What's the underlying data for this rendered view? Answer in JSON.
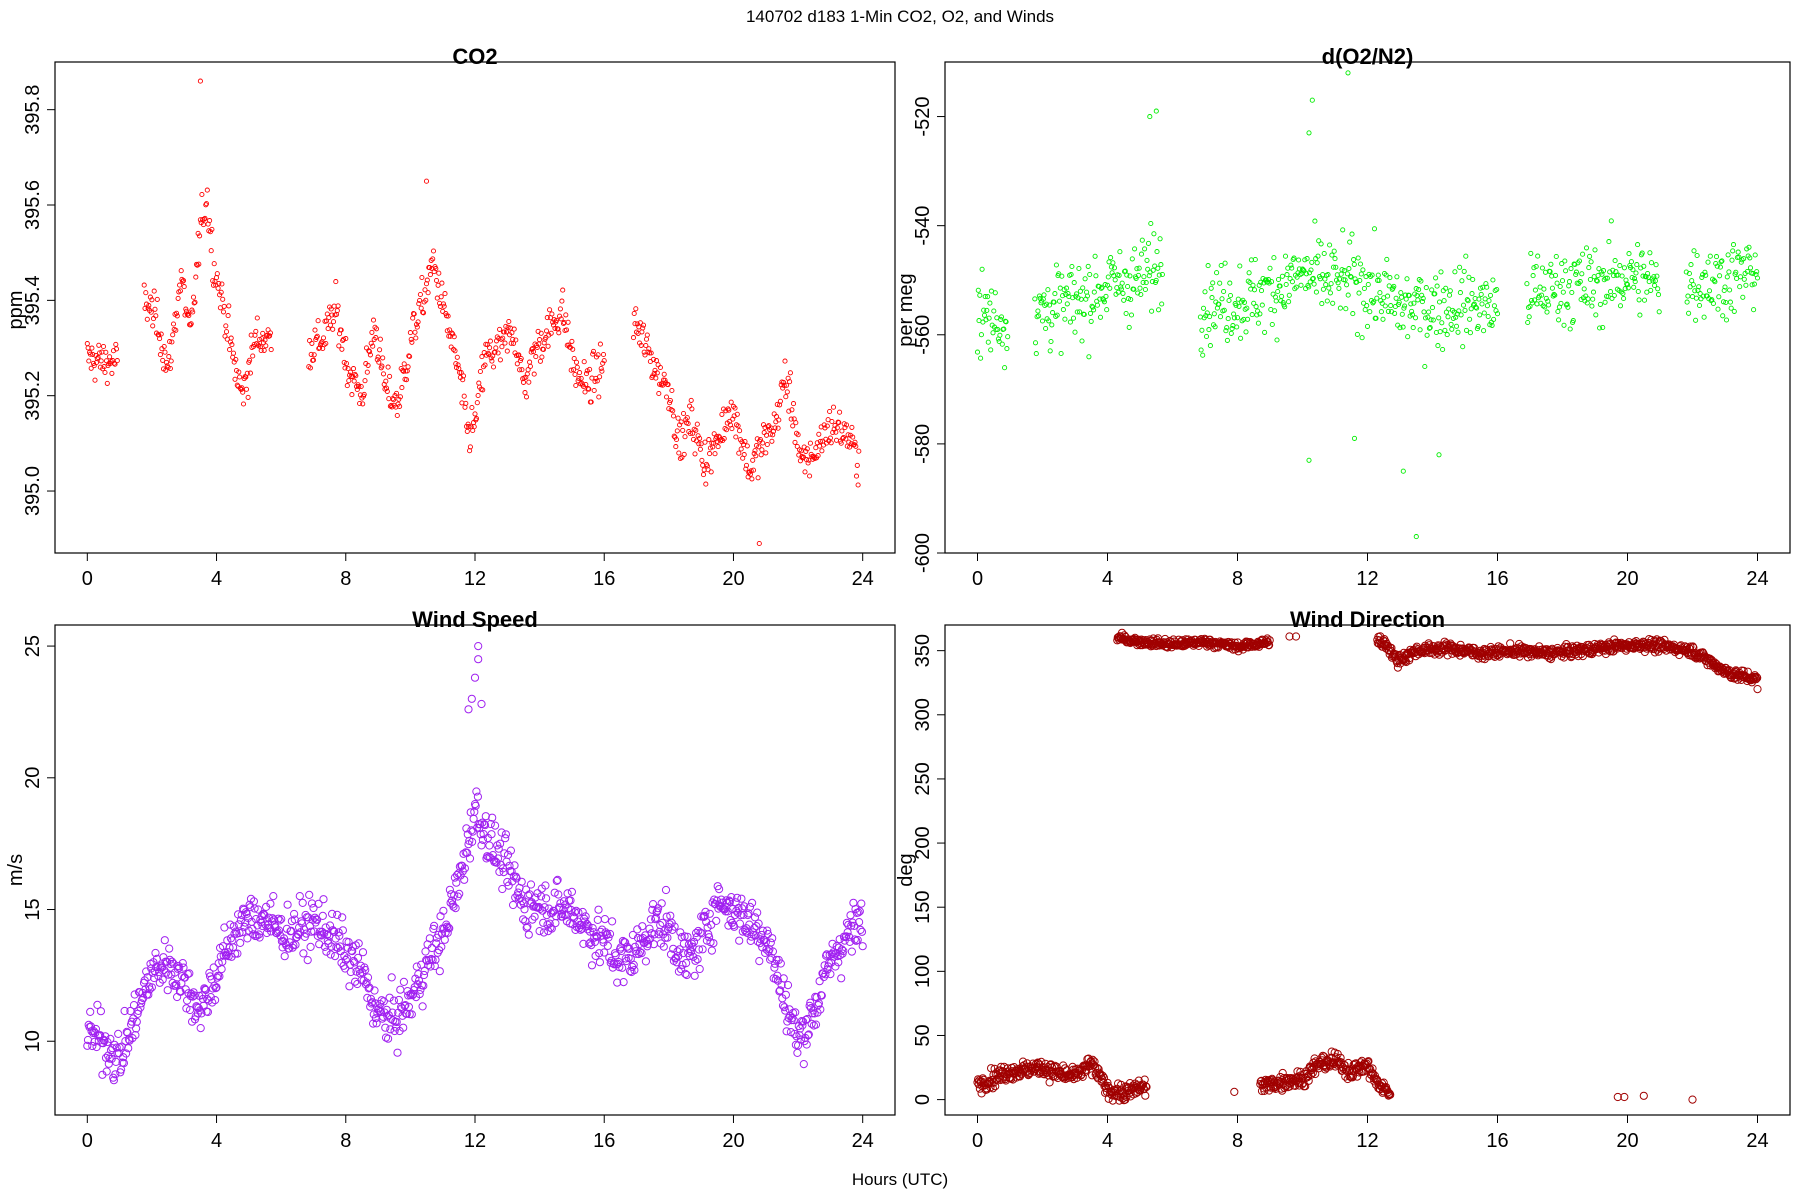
{
  "figure": {
    "suptitle": "140702   d183   1-Min CO2, O2, and Winds",
    "shared_xlabel": "Hours (UTC)"
  },
  "chart_data": [
    {
      "type": "scatter",
      "title": "CO2",
      "xlabel": "",
      "ylabel": "ppm",
      "xlim": [
        -1,
        25
      ],
      "ylim": [
        394.87,
        395.9
      ],
      "xticks": [
        0,
        4,
        8,
        12,
        16,
        20,
        24
      ],
      "yticks": [
        395.0,
        395.2,
        395.4,
        395.6,
        395.8
      ],
      "ytick_labels": [
        "395.0",
        "395.2",
        "395.4",
        "395.6",
        "395.8"
      ],
      "grid": false,
      "series": [
        {
          "color": "#ff0000",
          "trend": [
            [
              0.0,
              395.28
            ],
            [
              0.5,
              395.27
            ],
            [
              0.9,
              395.27
            ],
            [
              1.8,
              395.4
            ],
            [
              2.2,
              395.35
            ],
            [
              2.5,
              395.25
            ],
            [
              2.9,
              395.45
            ],
            [
              3.2,
              395.32
            ],
            [
              3.5,
              395.55
            ],
            [
              3.7,
              395.62
            ],
            [
              3.9,
              395.48
            ],
            [
              4.3,
              395.36
            ],
            [
              4.5,
              395.28
            ],
            [
              4.8,
              395.2
            ],
            [
              5.2,
              395.32
            ],
            [
              5.6,
              395.32
            ],
            [
              6.9,
              395.3
            ],
            [
              7.3,
              395.32
            ],
            [
              7.7,
              395.38
            ],
            [
              8.1,
              395.25
            ],
            [
              8.5,
              395.2
            ],
            [
              8.9,
              395.35
            ],
            [
              9.2,
              395.22
            ],
            [
              9.6,
              395.18
            ],
            [
              10.1,
              395.34
            ],
            [
              10.4,
              395.4
            ],
            [
              10.7,
              395.48
            ],
            [
              11.5,
              395.25
            ],
            [
              11.8,
              395.12
            ],
            [
              12.0,
              395.14
            ],
            [
              12.3,
              395.28
            ],
            [
              12.8,
              395.3
            ],
            [
              13.2,
              395.34
            ],
            [
              13.5,
              395.22
            ],
            [
              13.9,
              395.3
            ],
            [
              14.3,
              395.34
            ],
            [
              14.7,
              395.38
            ],
            [
              15.1,
              395.25
            ],
            [
              15.5,
              395.22
            ],
            [
              15.8,
              395.25
            ],
            [
              16.9,
              395.36
            ],
            [
              17.3,
              395.3
            ],
            [
              17.7,
              395.24
            ],
            [
              18.0,
              395.22
            ],
            [
              18.3,
              395.1
            ],
            [
              18.7,
              395.15
            ],
            [
              19.1,
              395.06
            ],
            [
              19.5,
              395.1
            ],
            [
              19.9,
              395.18
            ],
            [
              20.2,
              395.12
            ],
            [
              20.5,
              395.04
            ],
            [
              20.9,
              395.1
            ],
            [
              21.3,
              395.14
            ],
            [
              21.6,
              395.24
            ],
            [
              21.9,
              395.15
            ],
            [
              22.1,
              395.05
            ],
            [
              22.5,
              395.08
            ],
            [
              23.0,
              395.14
            ],
            [
              23.5,
              395.12
            ],
            [
              23.9,
              395.06
            ]
          ],
          "spread": 0.04,
          "gaps": [
            [
              0.95,
              1.75
            ],
            [
              5.7,
              6.85
            ],
            [
              16.0,
              16.9
            ]
          ],
          "outliers": [
            [
              3.5,
              395.86
            ],
            [
              10.5,
              395.65
            ],
            [
              20.8,
              394.89
            ]
          ]
        }
      ]
    },
    {
      "type": "scatter",
      "title": "d(O2/N2)",
      "xlabel": "",
      "ylabel": "per meg",
      "xlim": [
        -1,
        25
      ],
      "ylim": [
        -600,
        -510
      ],
      "xticks": [
        0,
        4,
        8,
        12,
        16,
        20,
        24
      ],
      "yticks": [
        -600,
        -580,
        -560,
        -540,
        -520
      ],
      "ytick_labels": [
        "-600",
        "-580",
        "-560",
        "-540",
        "-520"
      ],
      "grid": false,
      "series": [
        {
          "color": "#00ee00",
          "trend": [
            [
              0.0,
              -556
            ],
            [
              0.8,
              -558
            ],
            [
              1.8,
              -556
            ],
            [
              3.0,
              -554
            ],
            [
              4.0,
              -551
            ],
            [
              5.0,
              -550
            ],
            [
              5.5,
              -547
            ],
            [
              6.8,
              -554
            ],
            [
              8.0,
              -554
            ],
            [
              9.0,
              -552
            ],
            [
              10.0,
              -549
            ],
            [
              11.0,
              -550
            ],
            [
              12.0,
              -551
            ],
            [
              13.0,
              -555
            ],
            [
              14.0,
              -555
            ],
            [
              15.0,
              -554
            ],
            [
              16.0,
              -555
            ],
            [
              16.8,
              -553
            ],
            [
              18.0,
              -551
            ],
            [
              19.0,
              -551
            ],
            [
              20.0,
              -549
            ],
            [
              21.0,
              -551
            ],
            [
              22.0,
              -550
            ],
            [
              23.0,
              -550
            ],
            [
              24.0,
              -548
            ]
          ],
          "spread": 6.5,
          "gaps": [
            [
              0.95,
              1.75
            ],
            [
              5.7,
              6.85
            ],
            [
              16.0,
              16.9
            ],
            [
              21.0,
              21.8
            ]
          ],
          "outliers": [
            [
              5.3,
              -520
            ],
            [
              5.5,
              -519
            ],
            [
              10.2,
              -523
            ],
            [
              10.3,
              -517
            ],
            [
              11.4,
              -512
            ],
            [
              10.2,
              -583
            ],
            [
              13.5,
              -597
            ],
            [
              11.6,
              -579
            ],
            [
              14.2,
              -582
            ],
            [
              13.1,
              -585
            ]
          ]
        }
      ]
    },
    {
      "type": "scatter",
      "title": "Wind Speed",
      "xlabel": "",
      "ylabel": "m/s",
      "xlim": [
        -1,
        25
      ],
      "ylim": [
        7.2,
        25.8
      ],
      "xticks": [
        0,
        4,
        8,
        12,
        16,
        20,
        24
      ],
      "yticks": [
        10,
        15,
        20,
        25
      ],
      "ytick_labels": [
        "10",
        "15",
        "20",
        "25"
      ],
      "grid": false,
      "series": [
        {
          "color": "#a020f0",
          "trend": [
            [
              0.0,
              10.3
            ],
            [
              0.5,
              10.0
            ],
            [
              1.0,
              9.3
            ],
            [
              1.5,
              11.0
            ],
            [
              2.0,
              12.6
            ],
            [
              2.5,
              13.0
            ],
            [
              3.0,
              12.2
            ],
            [
              3.5,
              11.2
            ],
            [
              4.0,
              12.5
            ],
            [
              4.5,
              14.0
            ],
            [
              5.0,
              14.6
            ],
            [
              5.5,
              14.7
            ],
            [
              6.0,
              14.1
            ],
            [
              6.5,
              14.2
            ],
            [
              7.0,
              14.5
            ],
            [
              7.5,
              14.1
            ],
            [
              8.0,
              13.3
            ],
            [
              8.5,
              12.6
            ],
            [
              9.0,
              11.0
            ],
            [
              9.5,
              10.8
            ],
            [
              10.0,
              11.5
            ],
            [
              10.5,
              13.0
            ],
            [
              11.0,
              14.0
            ],
            [
              11.5,
              16.0
            ],
            [
              12.0,
              18.8
            ],
            [
              12.5,
              17.5
            ],
            [
              13.0,
              16.5
            ],
            [
              13.5,
              15.2
            ],
            [
              14.0,
              15.2
            ],
            [
              14.5,
              15.0
            ],
            [
              15.0,
              15.0
            ],
            [
              15.5,
              14.2
            ],
            [
              16.0,
              13.8
            ],
            [
              16.5,
              13.0
            ],
            [
              17.0,
              13.4
            ],
            [
              17.5,
              14.5
            ],
            [
              18.0,
              14.3
            ],
            [
              18.5,
              13.0
            ],
            [
              19.0,
              13.8
            ],
            [
              19.5,
              15.3
            ],
            [
              20.0,
              15.0
            ],
            [
              20.5,
              14.5
            ],
            [
              21.0,
              14.0
            ],
            [
              21.5,
              12.0
            ],
            [
              22.0,
              10.0
            ],
            [
              22.5,
              11.2
            ],
            [
              23.0,
              13.0
            ],
            [
              23.5,
              14.0
            ],
            [
              24.0,
              14.5
            ]
          ],
          "spread": 0.9,
          "gaps": [],
          "outliers": [
            [
              12.1,
              25.0
            ],
            [
              12.1,
              24.5
            ],
            [
              12.0,
              23.8
            ],
            [
              11.9,
              23.0
            ],
            [
              12.2,
              22.8
            ],
            [
              11.8,
              22.6
            ]
          ]
        }
      ]
    },
    {
      "type": "scatter",
      "title": "Wind Direction",
      "xlabel": "",
      "ylabel": "deg",
      "xlim": [
        -1,
        25
      ],
      "ylim": [
        -12,
        370
      ],
      "xticks": [
        0,
        4,
        8,
        12,
        16,
        20,
        24
      ],
      "yticks": [
        0,
        50,
        100,
        150,
        200,
        250,
        300,
        350
      ],
      "ytick_labels": [
        "0",
        "50",
        "100",
        "150",
        "200",
        "250",
        "300",
        "350"
      ],
      "grid": false,
      "series": [
        {
          "color": "#a00000",
          "segments": [
            {
              "trend": [
                [
                  0.0,
                  12
                ],
                [
                  1.0,
                  22
                ],
                [
                  2.0,
                  25
                ],
                [
                  2.5,
                  20
                ],
                [
                  3.0,
                  18
                ],
                [
                  3.5,
                  28
                ],
                [
                  4.0,
                  8
                ],
                [
                  4.5,
                  4
                ],
                [
                  5.0,
                  10
                ],
                [
                  5.2,
                  9
                ]
              ],
              "spread": 6
            },
            {
              "trend": [
                [
                  4.3,
                  360
                ],
                [
                  5.0,
                  357
                ],
                [
                  6.0,
                  355
                ],
                [
                  7.0,
                  357
                ],
                [
                  8.0,
                  353
                ],
                [
                  8.5,
                  355
                ],
                [
                  9.0,
                  357
                ]
              ],
              "spread": 3
            },
            {
              "trend": [
                [
                  8.7,
                  10
                ],
                [
                  9.5,
                  15
                ],
                [
                  10.0,
                  16
                ],
                [
                  10.5,
                  28
                ],
                [
                  11.0,
                  30
                ],
                [
                  11.5,
                  22
                ],
                [
                  12.0,
                  27
                ],
                [
                  12.3,
                  12
                ],
                [
                  12.7,
                  5
                ]
              ],
              "spread": 6
            },
            {
              "trend": [
                [
                  12.3,
                  358
                ],
                [
                  12.6,
                  355
                ],
                [
                  12.9,
                  342
                ],
                [
                  13.5,
                  350
                ],
                [
                  14.5,
                  352
                ],
                [
                  15.5,
                  348
                ],
                [
                  16.5,
                  350
                ],
                [
                  17.5,
                  348
                ],
                [
                  18.5,
                  350
                ],
                [
                  19.5,
                  353
                ],
                [
                  20.5,
                  355
                ],
                [
                  21.5,
                  352
                ],
                [
                  22.0,
                  350
                ],
                [
                  22.5,
                  342
                ],
                [
                  23.0,
                  334
                ],
                [
                  23.5,
                  330
                ],
                [
                  24.0,
                  328
                ]
              ],
              "spread": 4
            }
          ],
          "outliers": [
            [
              7.9,
              6
            ],
            [
              9.6,
              361
            ],
            [
              9.8,
              361
            ],
            [
              19.7,
              2
            ],
            [
              19.9,
              2
            ],
            [
              20.5,
              3
            ],
            [
              22.0,
              0
            ],
            [
              24.0,
              320
            ]
          ]
        }
      ]
    }
  ]
}
